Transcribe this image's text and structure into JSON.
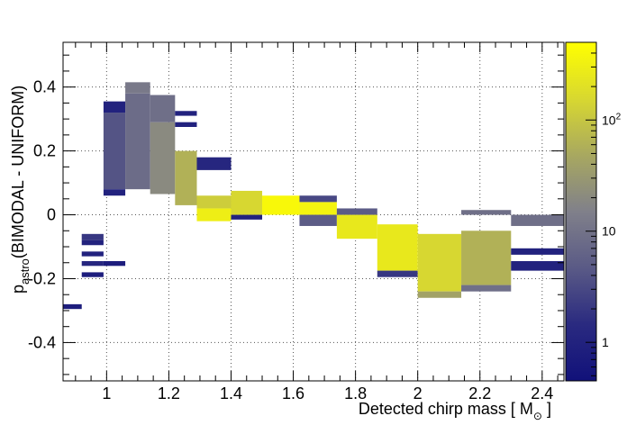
{
  "chart_data": {
    "type": "heatmap",
    "title": "",
    "xlabel": "Detected chirp mass [ M",
    "xlabel_sub": "⊙",
    "xlabel_end": " ]",
    "ylabel_main": "p",
    "ylabel_sub": "astro",
    "ylabel_rest": "(BIMODAL - UNIFORM)",
    "xlim": [
      0.86,
      2.47
    ],
    "ylim": [
      -0.52,
      0.54
    ],
    "xticks": [
      1,
      1.2,
      1.4,
      1.6,
      1.8,
      2,
      2.2,
      2.4
    ],
    "xtick_labels": [
      "1",
      "1.2",
      "1.4",
      "1.6",
      "1.8",
      "2",
      "2.2",
      "2.4"
    ],
    "yticks": [
      -0.4,
      -0.2,
      0,
      0.2,
      0.4
    ],
    "ytick_labels": [
      "-0.4",
      "-0.2",
      "0",
      "0.2",
      "0.4"
    ],
    "grid": true,
    "color_scale": "log",
    "zlim": [
      0.45,
      500
    ],
    "colorbar_ticks": [
      1,
      10,
      100
    ],
    "colorbar_labels": [
      "1",
      "10",
      "10^2"
    ],
    "colormap": [
      "#11117a",
      "#2a2a80",
      "#5a5a86",
      "#80808a",
      "#a8a860",
      "#d8d830",
      "#ffff00"
    ],
    "cells": [
      {
        "x": [
          0.86,
          0.92
        ],
        "y": [
          -0.295,
          -0.28
        ],
        "z": 0.8
      },
      {
        "x": [
          0.92,
          0.99
        ],
        "y": [
          -0.195,
          -0.18
        ],
        "z": 0.8
      },
      {
        "x": [
          0.92,
          0.99
        ],
        "y": [
          -0.16,
          -0.145
        ],
        "z": 1.2
      },
      {
        "x": [
          0.99,
          1.06
        ],
        "y": [
          -0.16,
          -0.145
        ],
        "z": 0.8
      },
      {
        "x": [
          0.92,
          0.99
        ],
        "y": [
          -0.13,
          -0.115
        ],
        "z": 1
      },
      {
        "x": [
          0.92,
          0.99
        ],
        "y": [
          -0.095,
          -0.08
        ],
        "z": 1
      },
      {
        "x": [
          0.92,
          0.99
        ],
        "y": [
          -0.08,
          -0.06
        ],
        "z": 2
      },
      {
        "x": [
          0.99,
          1.06
        ],
        "y": [
          0.06,
          0.08
        ],
        "z": 1
      },
      {
        "x": [
          0.99,
          1.06
        ],
        "y": [
          0.08,
          0.32
        ],
        "z": 4
      },
      {
        "x": [
          0.99,
          1.06
        ],
        "y": [
          0.32,
          0.355
        ],
        "z": 1
      },
      {
        "x": [
          1.06,
          1.14
        ],
        "y": [
          0.08,
          0.38
        ],
        "z": 8
      },
      {
        "x": [
          1.06,
          1.14
        ],
        "y": [
          0.38,
          0.415
        ],
        "z": 12
      },
      {
        "x": [
          1.14,
          1.22
        ],
        "y": [
          0.065,
          0.29
        ],
        "z": 20
      },
      {
        "x": [
          1.14,
          1.22
        ],
        "y": [
          0.29,
          0.375
        ],
        "z": 9
      },
      {
        "x": [
          1.22,
          1.29
        ],
        "y": [
          0.03,
          0.2
        ],
        "z": 60
      },
      {
        "x": [
          1.22,
          1.29
        ],
        "y": [
          0.275,
          0.29
        ],
        "z": 1
      },
      {
        "x": [
          1.22,
          1.29
        ],
        "y": [
          0.31,
          0.325
        ],
        "z": 1
      },
      {
        "x": [
          1.29,
          1.4
        ],
        "y": [
          0.14,
          0.18
        ],
        "z": 1.2
      },
      {
        "x": [
          1.29,
          1.4
        ],
        "y": [
          -0.02,
          0.02
        ],
        "z": 300
      },
      {
        "x": [
          1.29,
          1.4
        ],
        "y": [
          0.02,
          0.06
        ],
        "z": 120
      },
      {
        "x": [
          1.4,
          1.5
        ],
        "y": [
          -0.015,
          0.0
        ],
        "z": 1
      },
      {
        "x": [
          1.4,
          1.5
        ],
        "y": [
          0.0,
          0.075
        ],
        "z": 150
      },
      {
        "x": [
          1.5,
          1.62
        ],
        "y": [
          0.0,
          0.06
        ],
        "z": 400
      },
      {
        "x": [
          1.62,
          1.74
        ],
        "y": [
          0.0,
          0.04
        ],
        "z": 350
      },
      {
        "x": [
          1.62,
          1.74
        ],
        "y": [
          -0.035,
          0.0
        ],
        "z": 5
      },
      {
        "x": [
          1.62,
          1.74
        ],
        "y": [
          0.04,
          0.06
        ],
        "z": 3
      },
      {
        "x": [
          1.74,
          1.87
        ],
        "y": [
          -0.075,
          0.0
        ],
        "z": 250
      },
      {
        "x": [
          1.74,
          1.87
        ],
        "y": [
          0.0,
          0.02
        ],
        "z": 5
      },
      {
        "x": [
          1.87,
          2.0
        ],
        "y": [
          -0.175,
          -0.03
        ],
        "z": 250
      },
      {
        "x": [
          1.87,
          2.0
        ],
        "y": [
          -0.195,
          -0.175
        ],
        "z": 2
      },
      {
        "x": [
          2.0,
          2.14
        ],
        "y": [
          -0.24,
          -0.06
        ],
        "z": 150
      },
      {
        "x": [
          2.0,
          2.14
        ],
        "y": [
          -0.26,
          -0.24
        ],
        "z": 40
      },
      {
        "x": [
          2.14,
          2.3
        ],
        "y": [
          -0.22,
          -0.05
        ],
        "z": 60
      },
      {
        "x": [
          2.14,
          2.3
        ],
        "y": [
          -0.24,
          -0.22
        ],
        "z": 9
      },
      {
        "x": [
          2.14,
          2.3
        ],
        "y": [
          0.0,
          0.015
        ],
        "z": 9
      },
      {
        "x": [
          2.3,
          2.47
        ],
        "y": [
          -0.035,
          0.0
        ],
        "z": 9
      },
      {
        "x": [
          2.3,
          2.47
        ],
        "y": [
          -0.175,
          -0.145
        ],
        "z": 1
      },
      {
        "x": [
          2.3,
          2.47
        ],
        "y": [
          -0.125,
          -0.105
        ],
        "z": 1
      }
    ]
  }
}
